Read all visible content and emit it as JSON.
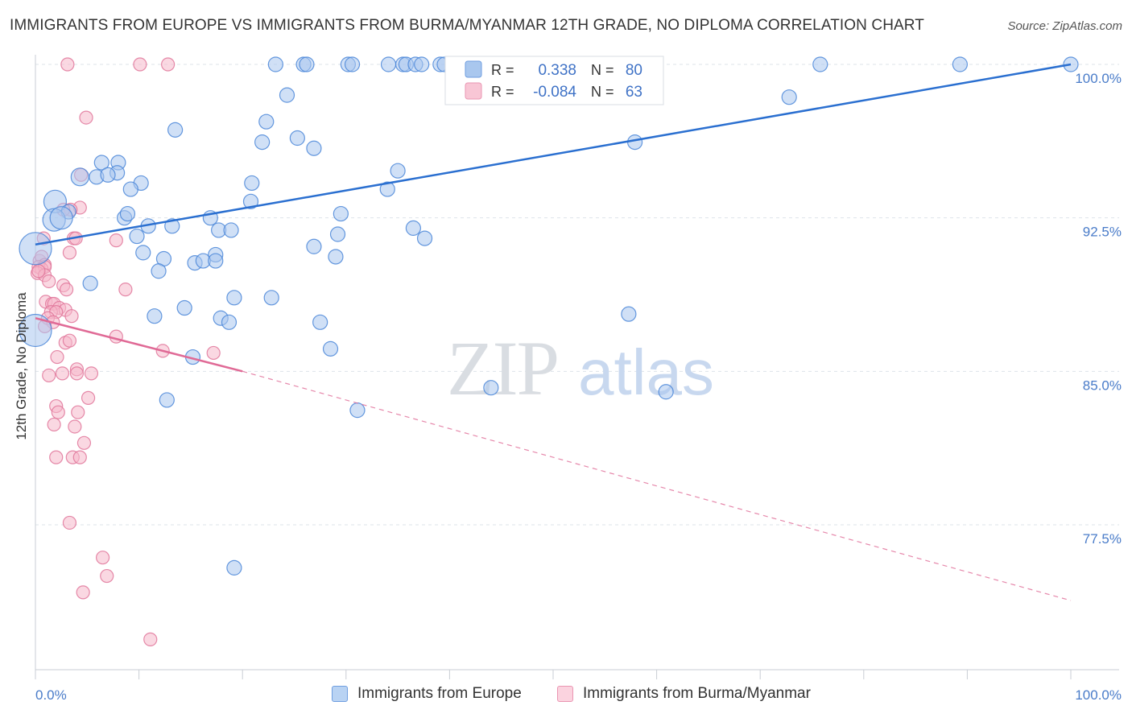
{
  "title": "IMMIGRANTS FROM EUROPE VS IMMIGRANTS FROM BURMA/MYANMAR 12TH GRADE, NO DIPLOMA CORRELATION CHART",
  "source": "Source: ZipAtlas.com",
  "watermark": {
    "zip": "ZIP",
    "atlas": "atlas"
  },
  "colors": {
    "blue": "#4a86d8",
    "blue_fill": "#a9c7ee",
    "blue_line": "#2a6fd0",
    "pink": "#e0769a",
    "pink_fill": "#f5b8cb",
    "pink_line": "#e06a96",
    "grid": "#dde3ea",
    "axis_text": "#4a7cc9"
  },
  "legend": {
    "r_label": "R =",
    "n_label": "N =",
    "rows": [
      {
        "series": "europe",
        "r": "0.338",
        "n": "80"
      },
      {
        "series": "burma",
        "r": "-0.084",
        "n": "63"
      }
    ]
  },
  "bottom_legend": [
    "Immigrants from Europe",
    "Immigrants from Burma/Myanmar"
  ],
  "chart_data": {
    "type": "scatter",
    "title": "IMMIGRANTS FROM EUROPE VS IMMIGRANTS FROM BURMA/MYANMAR 12TH GRADE, NO DIPLOMA CORRELATION CHART",
    "xlabel": "",
    "ylabel": "12th Grade, No Diploma",
    "xlim": [
      0,
      100
    ],
    "ylim": [
      70.5,
      101.5
    ],
    "x_tick_labels": [
      "0.0%",
      "100.0%"
    ],
    "y_ticks": [
      77.5,
      85.0,
      92.5,
      100.0
    ],
    "y_tick_labels": [
      "77.5%",
      "85.0%",
      "92.5%",
      "100.0%"
    ],
    "series": [
      {
        "name": "Immigrants from Europe",
        "color": "blue",
        "trend": {
          "x0": 0,
          "y0": 91.2,
          "x1": 100,
          "y1": 100.0
        },
        "points": [
          [
            23.2,
            100.0
          ],
          [
            25.9,
            100.0
          ],
          [
            26.2,
            100.0
          ],
          [
            30.2,
            100.0
          ],
          [
            30.6,
            100.0
          ],
          [
            34.1,
            100.0
          ],
          [
            35.5,
            100.0
          ],
          [
            35.8,
            100.0
          ],
          [
            36.7,
            100.0
          ],
          [
            37.3,
            100.0
          ],
          [
            39.1,
            100.0
          ],
          [
            39.5,
            100.0
          ],
          [
            49.4,
            100.0
          ],
          [
            55.7,
            100.0
          ],
          [
            75.8,
            100.0
          ],
          [
            89.3,
            100.0
          ],
          [
            100.0,
            100.0
          ],
          [
            24.3,
            98.5
          ],
          [
            72.8,
            98.4
          ],
          [
            22.3,
            97.2
          ],
          [
            13.5,
            96.8
          ],
          [
            21.9,
            96.2
          ],
          [
            25.3,
            96.4
          ],
          [
            57.9,
            96.2
          ],
          [
            6.4,
            95.2
          ],
          [
            8.0,
            95.2
          ],
          [
            7.9,
            94.7
          ],
          [
            4.3,
            94.5
          ],
          [
            5.9,
            94.5
          ],
          [
            7.0,
            94.6
          ],
          [
            10.2,
            94.2
          ],
          [
            20.9,
            94.2
          ],
          [
            34.0,
            93.9
          ],
          [
            9.2,
            93.9
          ],
          [
            1.9,
            93.3
          ],
          [
            20.8,
            93.3
          ],
          [
            3.2,
            92.8
          ],
          [
            8.6,
            92.5
          ],
          [
            8.9,
            92.7
          ],
          [
            16.9,
            92.5
          ],
          [
            29.5,
            92.7
          ],
          [
            1.8,
            92.4
          ],
          [
            2.5,
            92.5
          ],
          [
            10.9,
            92.1
          ],
          [
            13.2,
            92.1
          ],
          [
            17.7,
            91.9
          ],
          [
            18.9,
            91.9
          ],
          [
            36.5,
            92.0
          ],
          [
            29.2,
            91.7
          ],
          [
            9.8,
            91.6
          ],
          [
            0.0,
            91.0
          ],
          [
            10.4,
            90.8
          ],
          [
            12.4,
            90.5
          ],
          [
            17.4,
            90.7
          ],
          [
            26.9,
            91.1
          ],
          [
            29.0,
            90.6
          ],
          [
            15.4,
            90.3
          ],
          [
            16.2,
            90.4
          ],
          [
            17.4,
            90.4
          ],
          [
            11.9,
            89.9
          ],
          [
            5.3,
            89.3
          ],
          [
            19.2,
            88.6
          ],
          [
            22.8,
            88.6
          ],
          [
            14.4,
            88.1
          ],
          [
            11.5,
            87.7
          ],
          [
            17.9,
            87.6
          ],
          [
            18.7,
            87.4
          ],
          [
            27.5,
            87.4
          ],
          [
            57.3,
            87.8
          ],
          [
            0.0,
            87.0
          ],
          [
            28.5,
            86.1
          ],
          [
            15.2,
            85.7
          ],
          [
            44.0,
            84.2
          ],
          [
            60.9,
            84.0
          ],
          [
            12.7,
            83.6
          ],
          [
            31.1,
            83.1
          ],
          [
            19.2,
            75.4
          ],
          [
            26.9,
            95.9
          ],
          [
            35.0,
            94.8
          ],
          [
            37.6,
            91.5
          ]
        ],
        "sizes_note": "most points small; a few large points near x=0"
      },
      {
        "name": "Immigrants from Burma/Myanmar",
        "color": "pink",
        "trend": {
          "x0": 0,
          "y0": 87.6,
          "x1": 20,
          "y1": 85.0,
          "dashed_to": {
            "x": 100,
            "y": 73.8
          }
        },
        "points": [
          [
            3.1,
            100.0
          ],
          [
            10.1,
            100.0
          ],
          [
            12.8,
            100.0
          ],
          [
            4.9,
            97.4
          ],
          [
            4.4,
            94.6
          ],
          [
            4.3,
            93.0
          ],
          [
            3.4,
            92.9
          ],
          [
            2.7,
            92.9
          ],
          [
            0.8,
            91.5
          ],
          [
            3.7,
            91.5
          ],
          [
            3.9,
            91.5
          ],
          [
            7.8,
            91.4
          ],
          [
            3.3,
            90.8
          ],
          [
            0.4,
            90.4
          ],
          [
            0.6,
            90.6
          ],
          [
            0.9,
            90.2
          ],
          [
            0.3,
            90.1
          ],
          [
            0.6,
            90.0
          ],
          [
            0.9,
            90.1
          ],
          [
            0.2,
            89.8
          ],
          [
            0.9,
            89.7
          ],
          [
            1.3,
            89.4
          ],
          [
            2.7,
            89.2
          ],
          [
            3.0,
            89.0
          ],
          [
            8.7,
            89.0
          ],
          [
            1.0,
            88.4
          ],
          [
            1.6,
            88.3
          ],
          [
            1.8,
            88.3
          ],
          [
            2.3,
            88.1
          ],
          [
            2.9,
            88.0
          ],
          [
            1.5,
            87.9
          ],
          [
            2.0,
            87.9
          ],
          [
            3.5,
            87.7
          ],
          [
            1.2,
            87.6
          ],
          [
            1.7,
            87.4
          ],
          [
            0.9,
            87.2
          ],
          [
            7.8,
            86.7
          ],
          [
            2.9,
            86.4
          ],
          [
            3.3,
            86.5
          ],
          [
            12.3,
            86.0
          ],
          [
            17.2,
            85.9
          ],
          [
            2.1,
            85.7
          ],
          [
            4.0,
            85.1
          ],
          [
            1.3,
            84.8
          ],
          [
            2.6,
            84.9
          ],
          [
            4.0,
            84.9
          ],
          [
            5.4,
            84.9
          ],
          [
            5.1,
            83.7
          ],
          [
            2.0,
            83.3
          ],
          [
            2.2,
            83.0
          ],
          [
            4.1,
            83.0
          ],
          [
            1.8,
            82.4
          ],
          [
            3.8,
            82.3
          ],
          [
            4.7,
            81.5
          ],
          [
            2.0,
            80.8
          ],
          [
            3.6,
            80.8
          ],
          [
            4.3,
            80.8
          ],
          [
            3.3,
            77.6
          ],
          [
            6.5,
            75.9
          ],
          [
            6.9,
            75.0
          ],
          [
            4.6,
            74.2
          ],
          [
            11.1,
            71.9
          ],
          [
            0.3,
            89.9
          ]
        ]
      }
    ]
  }
}
